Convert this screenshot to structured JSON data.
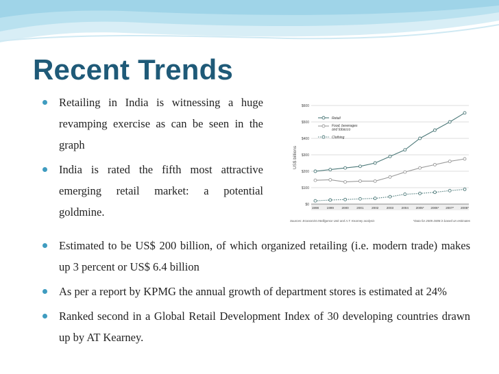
{
  "slide": {
    "title": "Recent Trends"
  },
  "bullets_top": [
    "Retailing in India is witnessing a huge revamping exercise as can be seen in the graph",
    "India is rated the fifth most attractive emerging retail market: a potential goldmine."
  ],
  "bullets_bottom": [
    "Estimated to be US$ 200 billion, of which organized retailing (i.e. modern trade) makes up 3 percent or US$ 6.4 billion",
    "As per a report by KPMG the annual growth of department stores is estimated at 24%",
    "Ranked second in a Global Retail Development Index of 30 developing countries drawn up by AT Kearney."
  ],
  "chart_data": {
    "type": "line",
    "title": "",
    "xlabel": "",
    "ylabel": "US$ billions",
    "categories": [
      "1998",
      "1999",
      "2000",
      "2001",
      "2002",
      "2003",
      "2004",
      "2005*",
      "2006*",
      "2007*",
      "2008*"
    ],
    "yticks": [
      "$0",
      "$100",
      "$200",
      "$300",
      "$400",
      "$500",
      "$600"
    ],
    "ylim": [
      0,
      600
    ],
    "series": [
      {
        "name": "Retail",
        "color": "#4a7777",
        "dashed": false,
        "values": [
          200,
          210,
          220,
          230,
          250,
          290,
          330,
          400,
          450,
          500,
          555
        ]
      },
      {
        "name": "Food, beverages and tobacco",
        "color": "#9a9a9a",
        "dashed": false,
        "values": [
          145,
          148,
          135,
          140,
          140,
          165,
          195,
          220,
          240,
          260,
          275
        ]
      },
      {
        "name": "Clothing",
        "color": "#4a7777",
        "dashed": true,
        "values": [
          20,
          25,
          28,
          32,
          35,
          45,
          60,
          65,
          72,
          82,
          90
        ]
      }
    ],
    "source": "Sources: Economist Intelligence Unit and A.T. Kearney analysis",
    "note": "*Data for 2005-2008 is based on estimates",
    "grid": true,
    "legend": "top-left"
  }
}
